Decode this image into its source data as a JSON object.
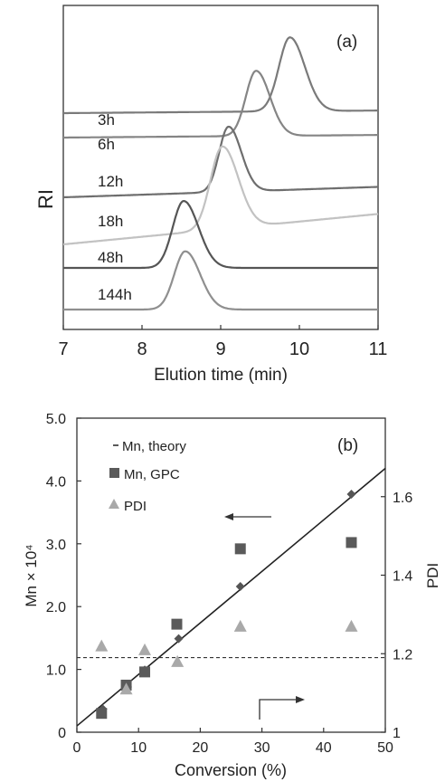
{
  "chart_data": [
    {
      "type": "line",
      "panel_label": "(a)",
      "xlabel": "Elution time (min)",
      "ylabel": "RI",
      "xlim": [
        7,
        11
      ],
      "x_ticks": [
        "7",
        "8",
        "9",
        "10",
        "11"
      ],
      "grid": false,
      "series": [
        {
          "name": "3h",
          "peak_x": 9.88,
          "peak_height": 0.85,
          "width": 0.14,
          "baseline_left": 0.0,
          "baseline_right": 0.03,
          "color": "#7a7a7a"
        },
        {
          "name": "6h",
          "peak_x": 9.45,
          "peak_height": 0.75,
          "width": 0.13,
          "baseline_left": 0.0,
          "baseline_right": 0.03,
          "color": "#858585"
        },
        {
          "name": "12h",
          "peak_x": 9.1,
          "peak_height": 0.75,
          "width": 0.12,
          "baseline_left": 0.0,
          "baseline_right": 0.12,
          "color": "#6e6e6e"
        },
        {
          "name": "18h",
          "peak_x": 9.02,
          "peak_height": 0.95,
          "width": 0.15,
          "baseline_left": 0.0,
          "baseline_right": 0.35,
          "color": "#c2c2c2"
        },
        {
          "name": "48h",
          "peak_x": 8.53,
          "peak_height": 0.77,
          "width": 0.14,
          "baseline_left": 0.0,
          "baseline_right": 0.0,
          "color": "#555555"
        },
        {
          "name": "144h",
          "peak_x": 8.55,
          "peak_height": 0.67,
          "width": 0.14,
          "baseline_left": 0.0,
          "baseline_right": 0.0,
          "color": "#8f8f8f"
        }
      ]
    },
    {
      "type": "scatter",
      "panel_label": "(b)",
      "xlabel": "Conversion (%)",
      "ylabel": "Mn × 10⁴",
      "y2label": "PDI",
      "xlim": [
        0,
        50
      ],
      "ylim": [
        0,
        5
      ],
      "y2lim": [
        1,
        1.8
      ],
      "x_ticks": [
        "0",
        "10",
        "20",
        "30",
        "40",
        "50"
      ],
      "y_ticks": [
        "0",
        "1.0",
        "2.0",
        "3.0",
        "4.0",
        "5.0"
      ],
      "y2_ticks": [
        "1",
        "1.2",
        "1.4",
        "1.6"
      ],
      "legend": [
        {
          "label": "Mn, theory",
          "marker": "line"
        },
        {
          "label": "Mn, GPC",
          "marker": "square"
        },
        {
          "label": "PDI",
          "marker": "triangle"
        }
      ],
      "series": [
        {
          "name": "Mn, theory",
          "x": [
            4.2,
            8.2,
            11.0,
            16.5,
            26.5,
            44.5
          ],
          "y": [
            0.37,
            0.72,
            0.99,
            1.49,
            2.32,
            3.79
          ],
          "line": {
            "x": [
              0,
              50
            ],
            "y": [
              0.1,
              4.2
            ]
          },
          "color": "#222222"
        },
        {
          "name": "Mn, GPC",
          "x": [
            4.0,
            8.0,
            11.0,
            16.2,
            26.5,
            44.5
          ],
          "y": [
            0.3,
            0.75,
            0.96,
            1.72,
            2.92,
            3.02
          ],
          "color": "#5a5a5a"
        },
        {
          "name": "PDI",
          "axis": "right",
          "x": [
            4.0,
            8.0,
            11.0,
            16.3,
            26.5,
            44.5
          ],
          "y": [
            1.22,
            1.11,
            1.21,
            1.18,
            1.27,
            1.27
          ],
          "color": "#a9a9a9"
        }
      ],
      "reference_line": {
        "axis": "right",
        "y": 1.19,
        "style": "dashed"
      },
      "arrows": [
        "left",
        "right"
      ]
    }
  ]
}
